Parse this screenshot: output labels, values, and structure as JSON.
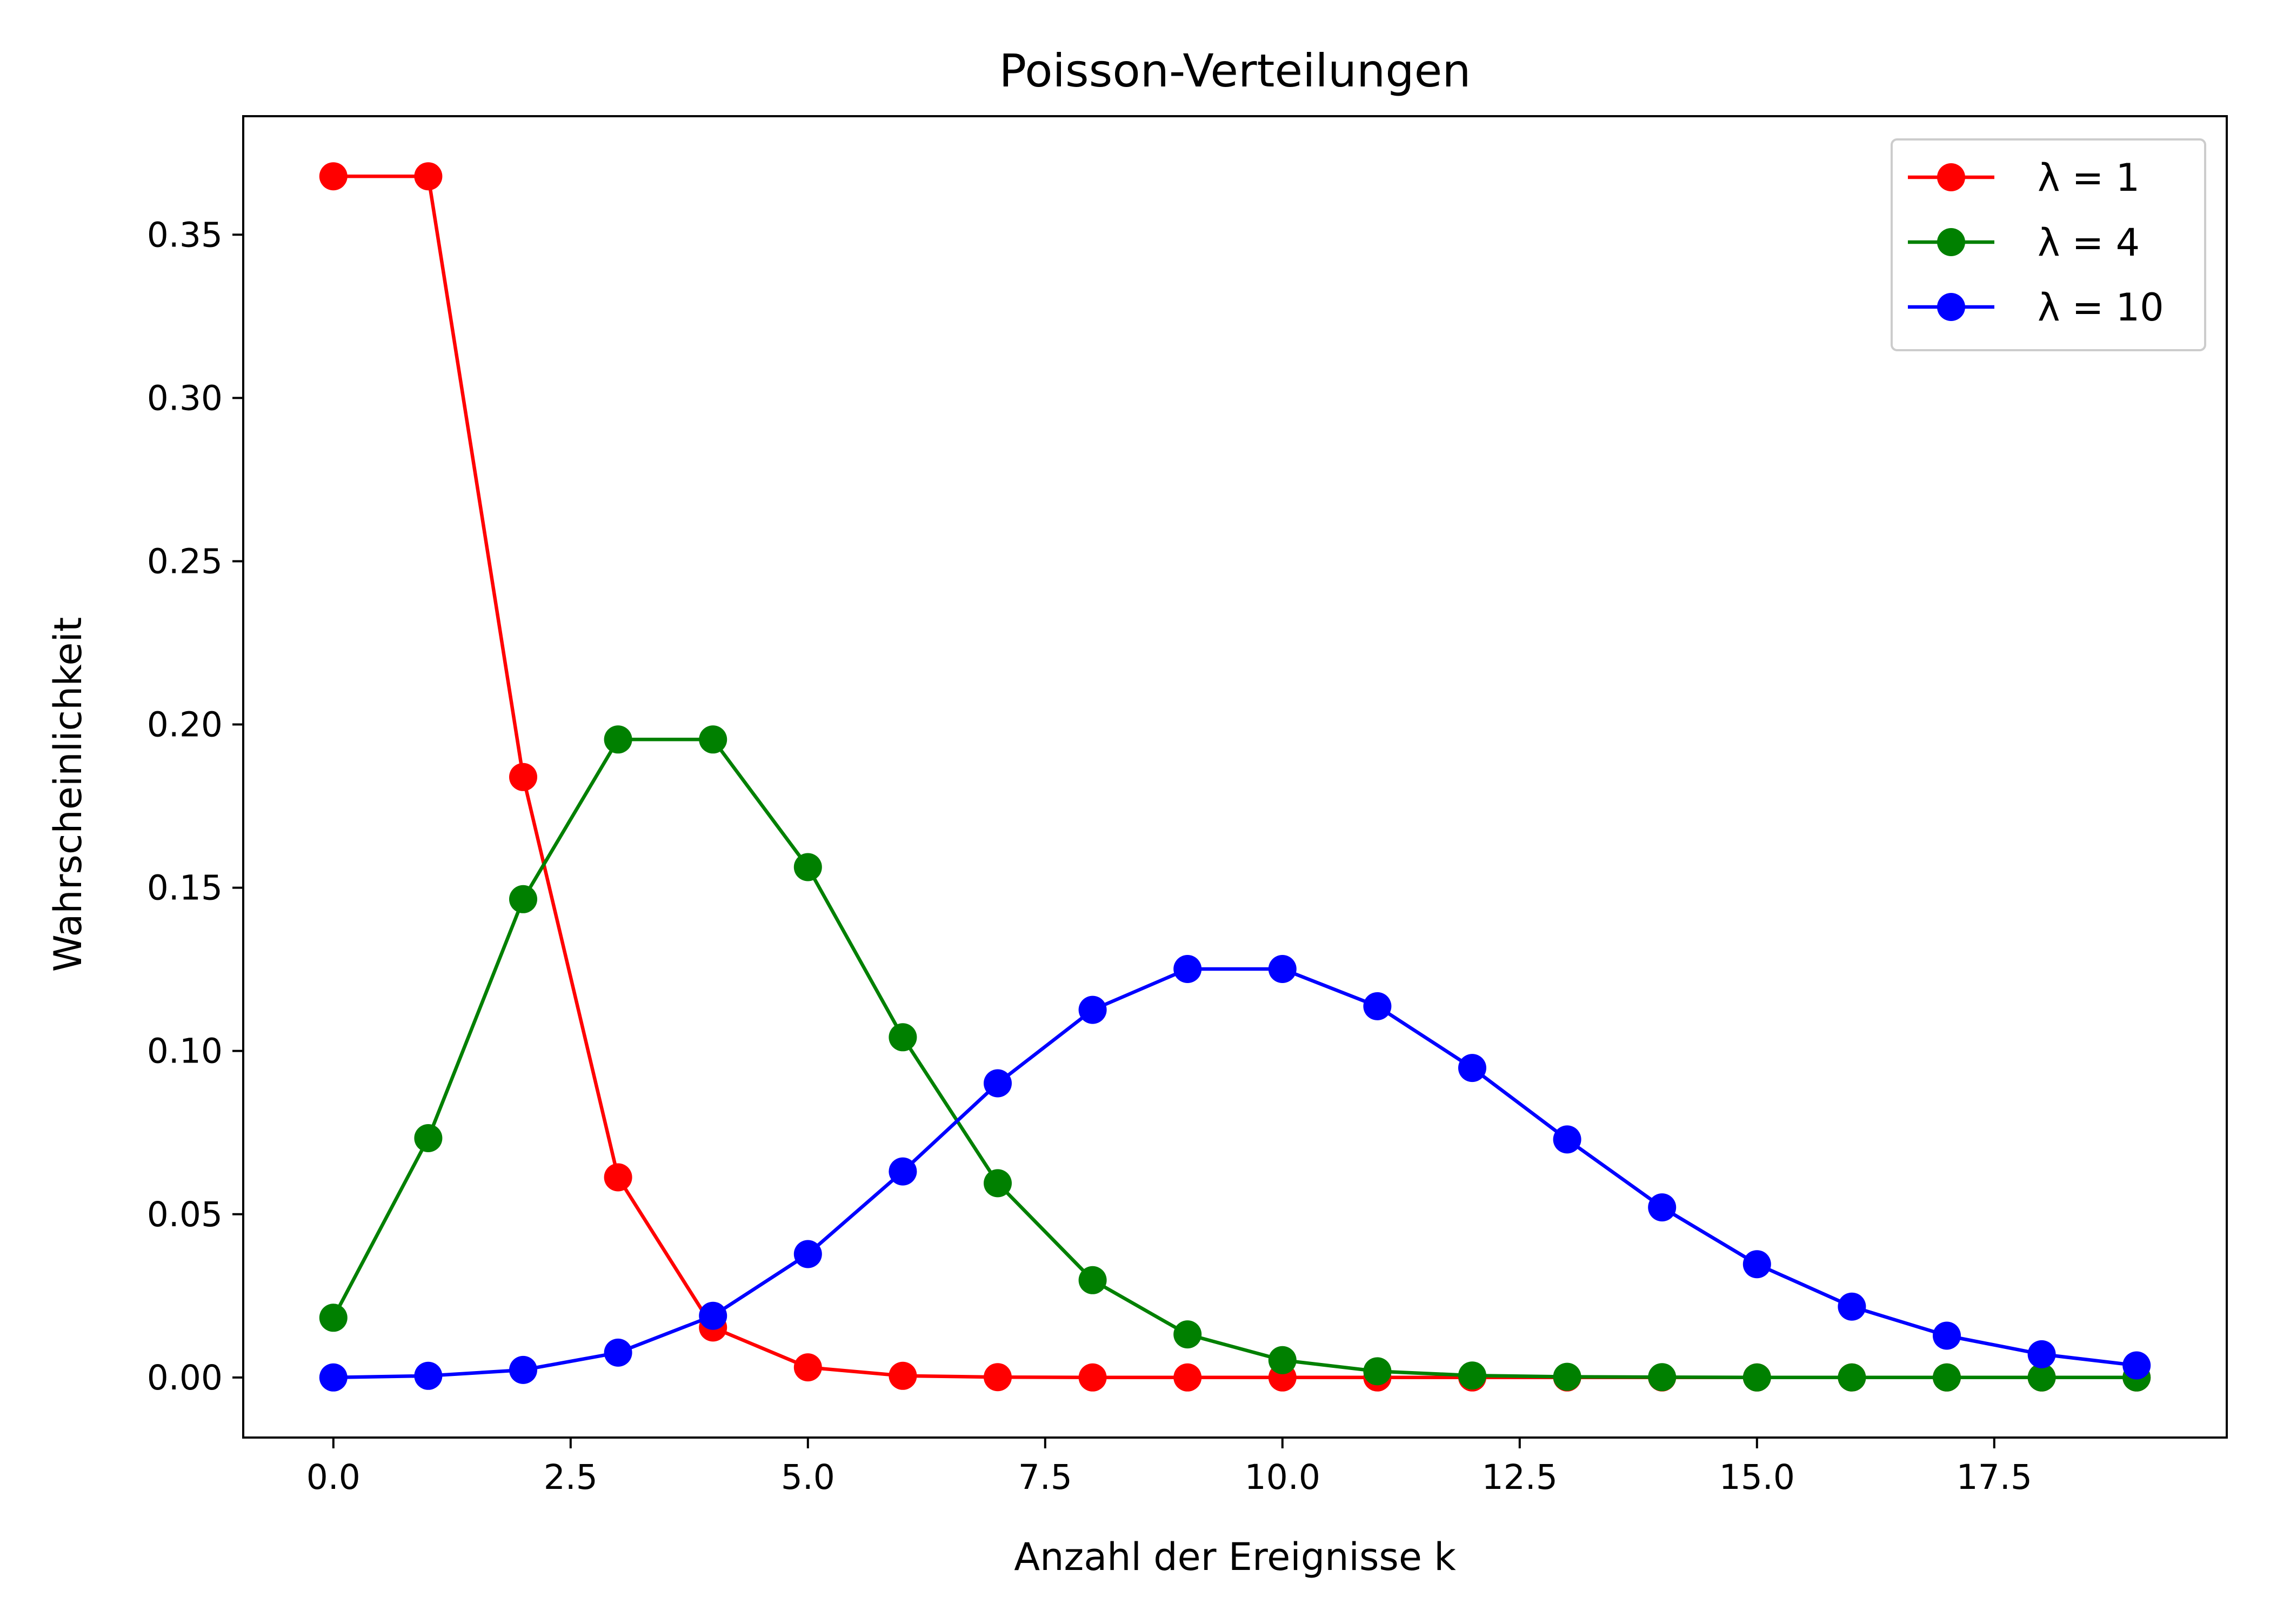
{
  "chart_data": {
    "type": "line",
    "title": "Poisson-Verteilungen",
    "xlabel": "Anzahl der Ereignisse k",
    "ylabel": "Wahrscheinlichkeit",
    "xlim": [
      -0.95,
      19.95
    ],
    "ylim": [
      -0.0184,
      0.3863
    ],
    "xticks": [
      0,
      2.5,
      5,
      7.5,
      10,
      12.5,
      15,
      17.5
    ],
    "xtick_labels": [
      "0.0",
      "2.5",
      "5.0",
      "7.5",
      "10.0",
      "12.5",
      "15.0",
      "17.5"
    ],
    "yticks": [
      0,
      0.05,
      0.1,
      0.15,
      0.2,
      0.25,
      0.3,
      0.35
    ],
    "ytick_labels": [
      "0.00",
      "0.05",
      "0.10",
      "0.15",
      "0.20",
      "0.25",
      "0.30",
      "0.35"
    ],
    "grid": false,
    "legend_position": "top-right",
    "x": [
      0,
      1,
      2,
      3,
      4,
      5,
      6,
      7,
      8,
      9,
      10,
      11,
      12,
      13,
      14,
      15,
      16,
      17,
      18,
      19
    ],
    "series": [
      {
        "name": "λ = 1",
        "color": "#ff0000",
        "marker": "circle",
        "values": [
          0.3679,
          0.3679,
          0.1839,
          0.0613,
          0.0153,
          0.0031,
          0.0005,
          0.0001,
          0.0,
          0.0,
          0.0,
          0.0,
          0.0,
          0.0,
          0.0,
          0.0,
          0.0,
          0.0,
          0.0,
          0.0
        ]
      },
      {
        "name": "λ = 4",
        "color": "#008000",
        "marker": "circle",
        "values": [
          0.0183,
          0.0733,
          0.1465,
          0.1954,
          0.1954,
          0.1563,
          0.1042,
          0.0595,
          0.0298,
          0.0132,
          0.0053,
          0.0019,
          0.0006,
          0.0002,
          0.0001,
          0.0,
          0.0,
          0.0,
          0.0,
          0.0
        ]
      },
      {
        "name": "λ = 10",
        "color": "#0000ff",
        "marker": "circle",
        "values": [
          0.0,
          0.0005,
          0.0023,
          0.0076,
          0.0189,
          0.0378,
          0.0631,
          0.0901,
          0.1126,
          0.1251,
          0.1251,
          0.1137,
          0.0948,
          0.0729,
          0.0521,
          0.0347,
          0.0217,
          0.0128,
          0.0071,
          0.0037
        ]
      }
    ]
  }
}
